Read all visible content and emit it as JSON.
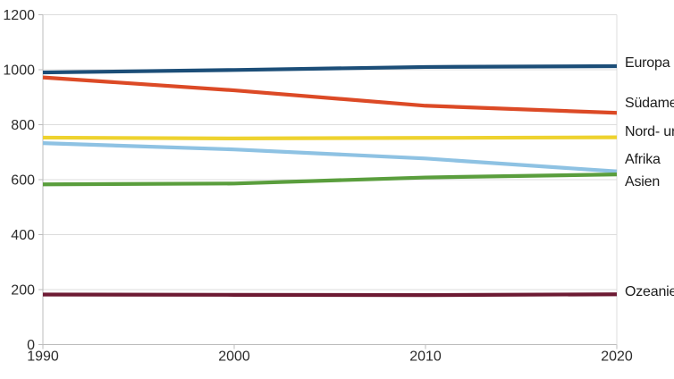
{
  "chart_data": {
    "type": "line",
    "title": "",
    "xlabel": "",
    "ylabel": "",
    "x": [
      1990,
      2000,
      2010,
      2020
    ],
    "xlim": [
      1990,
      2020
    ],
    "ylim": [
      0,
      1200
    ],
    "x_tick_labels": [
      "1990",
      "2000",
      "2010",
      "2020"
    ],
    "y_ticks": [
      0,
      200,
      400,
      600,
      800,
      1000,
      1200
    ],
    "y_tick_labels": [
      "0",
      "200",
      "400",
      "600",
      "800",
      "1000",
      "1200"
    ],
    "grid": true,
    "legend_position": "labels-at-line-ends-right",
    "series": [
      {
        "name": "Europa",
        "color": "#1c4e78",
        "values": [
          990,
          999,
          1010,
          1013
        ]
      },
      {
        "name": "Südamerika",
        "color": "#dc4a26",
        "values": [
          972,
          925,
          869,
          843
        ]
      },
      {
        "name": "Nord- und Mittelamerika",
        "color": "#eed22e",
        "values": [
          753,
          750,
          752,
          754
        ]
      },
      {
        "name": "Afrika",
        "color": "#8ec2e3",
        "values": [
          733,
          710,
          677,
          630
        ]
      },
      {
        "name": "Asien",
        "color": "#5a9e3d",
        "values": [
          583,
          586,
          608,
          619
        ]
      },
      {
        "name": "Ozeanien",
        "color": "#6d1a33",
        "values": [
          182,
          181,
          180,
          183
        ]
      }
    ],
    "colors": {
      "gridline": "#dcdcdc",
      "axis": "#bcbcbc",
      "tick_text": "#2b2b2b"
    }
  }
}
